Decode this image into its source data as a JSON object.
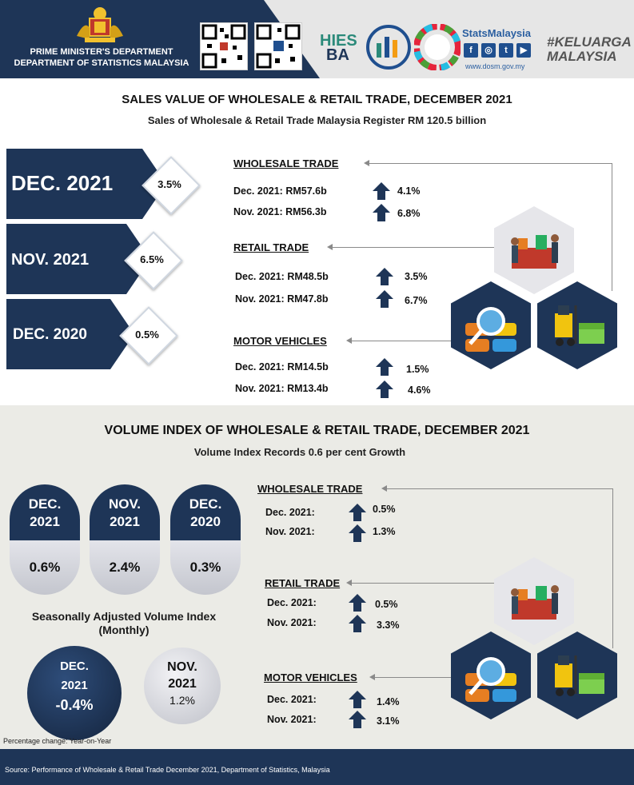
{
  "header": {
    "org_line1": "PRIME MINISTER'S DEPARTMENT",
    "org_line2": "DEPARTMENT OF STATISTICS MALAYSIA",
    "hies_line1": "HIES",
    "hies_line2": "BA",
    "stats_title": "StatsMalaysia",
    "stats_url": "www.dosm.gov.my",
    "keluarga": "#KELUARGA MALAYSIA",
    "social_icons": [
      "f",
      "ig",
      "t",
      "yt"
    ]
  },
  "sales": {
    "title": "SALES VALUE OF WHOLESALE & RETAIL TRADE, DECEMBER 2021",
    "subtitle": "Sales of Wholesale & Retail Trade Malaysia Register RM 120.5 billion",
    "periods": [
      {
        "label": "DEC. 2021",
        "pct": "3.5%"
      },
      {
        "label": "NOV. 2021",
        "pct": "6.5%"
      },
      {
        "label": "DEC. 2020",
        "pct": "0.5%"
      }
    ],
    "categories": [
      {
        "name": "WHOLESALE TRADE",
        "rows": [
          {
            "label": "Dec. 2021: RM57.6b",
            "pct": "4.1%"
          },
          {
            "label": "Nov. 2021: RM56.3b",
            "pct": "6.8%"
          }
        ]
      },
      {
        "name": "RETAIL TRADE",
        "rows": [
          {
            "label": "Dec. 2021: RM48.5b",
            "pct": "3.5%"
          },
          {
            "label": "Nov. 2021: RM47.8b",
            "pct": "6.7%"
          }
        ]
      },
      {
        "name": "MOTOR VEHICLES",
        "rows": [
          {
            "label": "Dec. 2021: RM14.5b",
            "pct": "1.5%"
          },
          {
            "label": "Nov. 2021: RM13.4b",
            "pct": "4.6%"
          }
        ]
      }
    ]
  },
  "volume": {
    "title": "VOLUME INDEX OF WHOLESALE & RETAIL TRADE, DECEMBER 2021",
    "subtitle": "Volume Index Records 0.6 per cent Growth",
    "pills": [
      {
        "line1": "DEC.",
        "line2": "2021",
        "value": "0.6%"
      },
      {
        "line1": "NOV.",
        "line2": "2021",
        "value": "2.4%"
      },
      {
        "line1": "DEC.",
        "line2": "2020",
        "value": "0.3%"
      }
    ],
    "seasonal_label": "Seasonally Adjusted Volume Index (Monthly)",
    "circles": [
      {
        "line1": "DEC.",
        "line2": "2021",
        "value": "-0.4%"
      },
      {
        "line1": "NOV.",
        "line2": "2021",
        "value": "1.2%"
      }
    ],
    "categories": [
      {
        "name": "WHOLESALE TRADE",
        "rows": [
          {
            "label": "Dec. 2021:",
            "pct": "0.5%"
          },
          {
            "label": "Nov. 2021:",
            "pct": "1.3%"
          }
        ]
      },
      {
        "name": "RETAIL TRADE",
        "rows": [
          {
            "label": "Dec. 2021:",
            "pct": "0.5%"
          },
          {
            "label": "Nov. 2021:",
            "pct": "3.3%"
          }
        ]
      },
      {
        "name": "MOTOR VEHICLES",
        "rows": [
          {
            "label": "Dec. 2021:",
            "pct": "1.4%"
          },
          {
            "label": "Nov. 2021:",
            "pct": "3.1%"
          }
        ]
      }
    ],
    "note": "Percentage change: Year-on-Year"
  },
  "footer": {
    "source": "Source: Performance of Wholesale & Retail Trade December 2021, Department of Statistics, Malaysia"
  },
  "colors": {
    "navy": "#1e3557",
    "grey_bg": "#ebebe6"
  }
}
